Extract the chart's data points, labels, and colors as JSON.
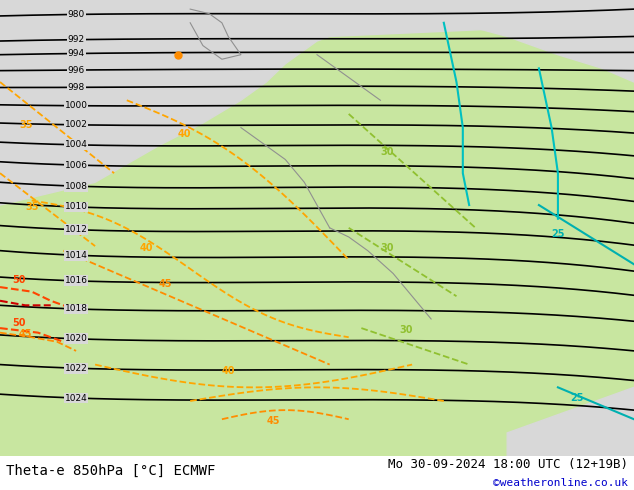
{
  "title_left": "Theta-e 850hPa [°C] ECMWF",
  "title_right": "Mo 30-09-2024 18:00 UTC (12+19B)",
  "copyright": "©weatheronline.co.uk",
  "bg_color": "#f0f0f0",
  "land_color": "#c8e6a0",
  "sea_color": "#dcdcdc",
  "border_color": "#808080",
  "pressure_color": "#000000",
  "theta_e_warm_colors": [
    "#ff8c00",
    "#ff6000",
    "#ff0000"
  ],
  "theta_e_cool_colors": [
    "#00b0b0",
    "#00d0c0"
  ],
  "theta_e_green_colors": [
    "#80c000",
    "#a0d000"
  ],
  "label_color_left": "#000000",
  "label_color_right": "#000000",
  "copyright_color": "#0000cc",
  "fig_width": 6.34,
  "fig_height": 4.9,
  "dpi": 100,
  "bottom_bar_color": "#ffffff",
  "bottom_bar_height": 0.07,
  "title_fontsize": 10,
  "copyright_fontsize": 8
}
